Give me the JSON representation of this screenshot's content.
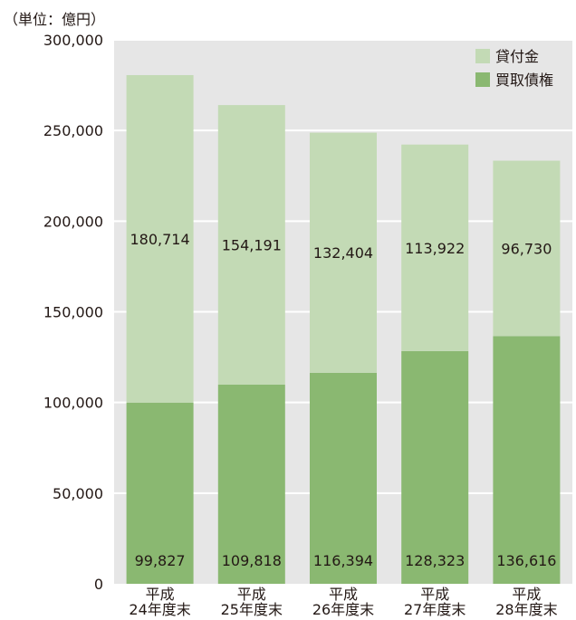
{
  "chart_data": {
    "type": "bar",
    "stacked": true,
    "unit_label": "（単位：億円）",
    "categories": [
      [
        "平成",
        "24年度末"
      ],
      [
        "平成",
        "25年度末"
      ],
      [
        "平成",
        "26年度末"
      ],
      [
        "平成",
        "27年度末"
      ],
      [
        "平成",
        "28年度末"
      ]
    ],
    "series": [
      {
        "name": "買取債権",
        "color": "#8ab871",
        "values": [
          99827,
          109818,
          116394,
          128323,
          136616
        ],
        "labels": [
          "99,827",
          "109,818",
          "116,394",
          "128,323",
          "136,616"
        ]
      },
      {
        "name": "貸付金",
        "color": "#c3dab5",
        "values": [
          180714,
          154191,
          132404,
          113922,
          96730
        ],
        "labels": [
          "180,714",
          "154,191",
          "132,404",
          "113,922",
          "96,730"
        ]
      }
    ],
    "legend_order": [
      "貸付金",
      "買取債権"
    ],
    "legend_position": "top-right",
    "ylim": [
      0,
      300000
    ],
    "yticks": [
      0,
      50000,
      100000,
      150000,
      200000,
      250000,
      300000
    ],
    "ytick_labels": [
      "0",
      "50,000",
      "100,000",
      "150,000",
      "200,000",
      "250,000",
      "300,000"
    ],
    "grid": true,
    "plot_background": "#e6e6e6",
    "grid_color": "#ffffff"
  }
}
